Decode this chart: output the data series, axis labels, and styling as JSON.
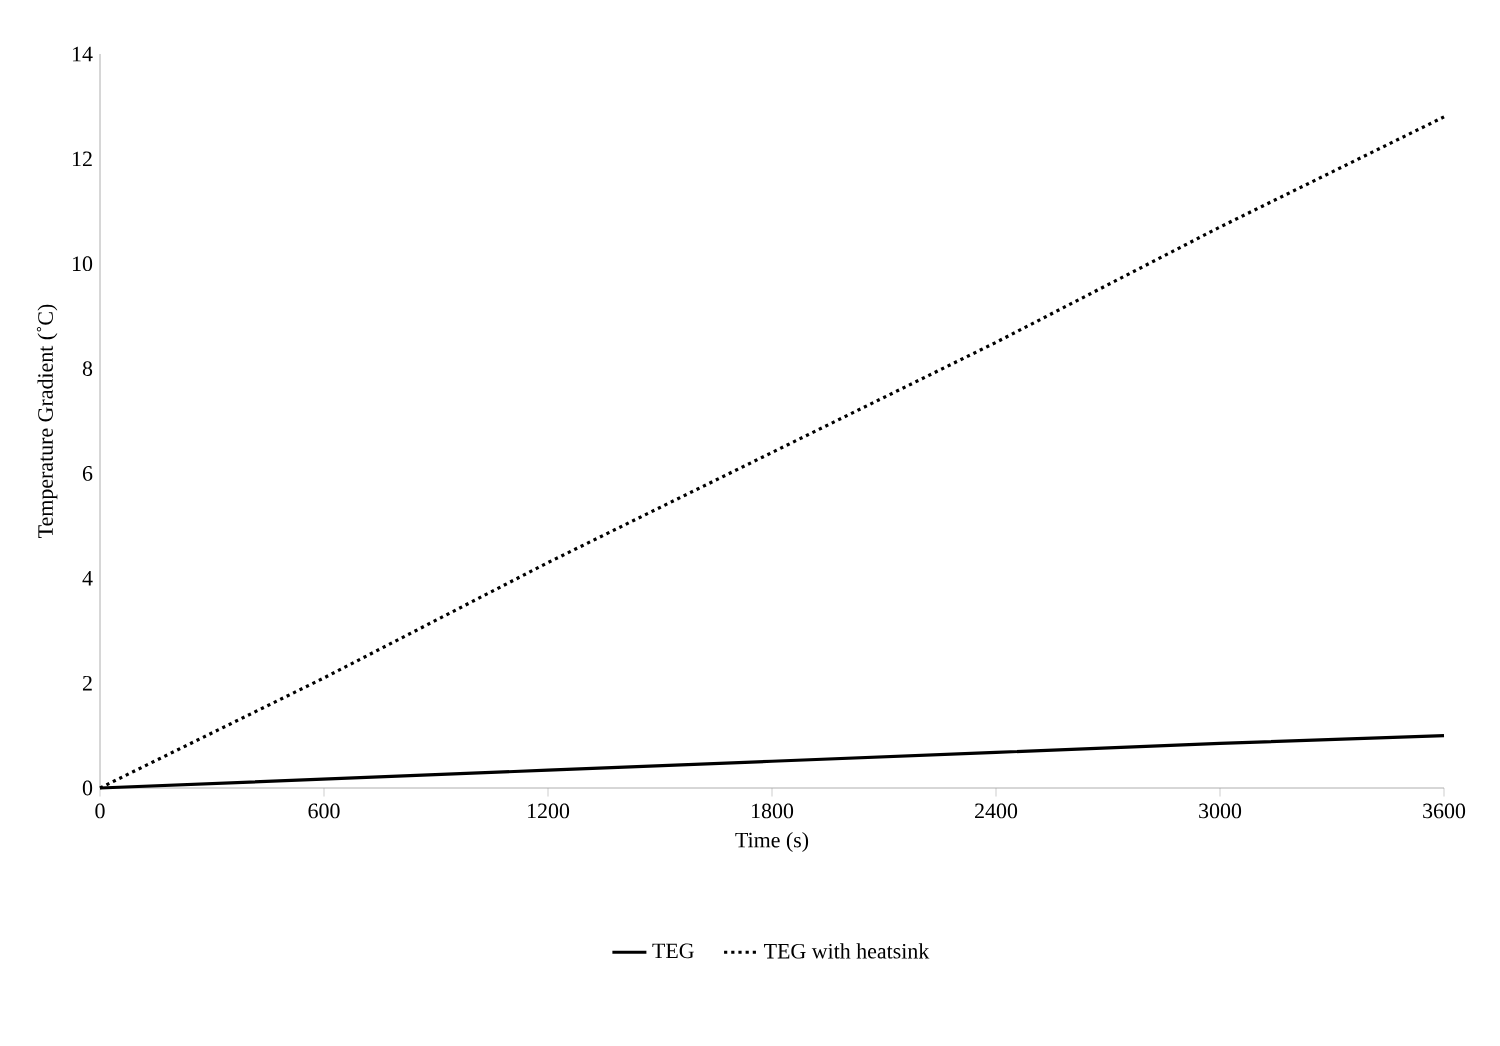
{
  "chart_data": {
    "type": "line",
    "xlabel": "Time (s)",
    "ylabel": "Temperature Gradient (˚C)",
    "xlim": [
      0,
      3600
    ],
    "xticks": [
      0,
      600,
      1200,
      1800,
      2400,
      3000,
      3600
    ],
    "ylim": [
      0,
      14
    ],
    "yticks": [
      0,
      2,
      4,
      6,
      8,
      10,
      12,
      14
    ],
    "grid": false,
    "legend": "bottom",
    "marker": "none",
    "series": [
      {
        "name": "TEG",
        "color": "#000000",
        "line_style": "solid",
        "x": [
          0,
          600,
          1200,
          1800,
          2400,
          3000,
          3600
        ],
        "values": [
          0,
          0.17,
          0.34,
          0.51,
          0.68,
          0.85,
          1.0
        ]
      },
      {
        "name": "TEG with heatsink",
        "color": "#000000",
        "line_style": "dotted",
        "x": [
          0,
          600,
          1200,
          1800,
          2400,
          3000,
          3600
        ],
        "values": [
          0,
          2.1,
          4.3,
          6.4,
          8.5,
          10.7,
          12.8
        ]
      }
    ]
  }
}
